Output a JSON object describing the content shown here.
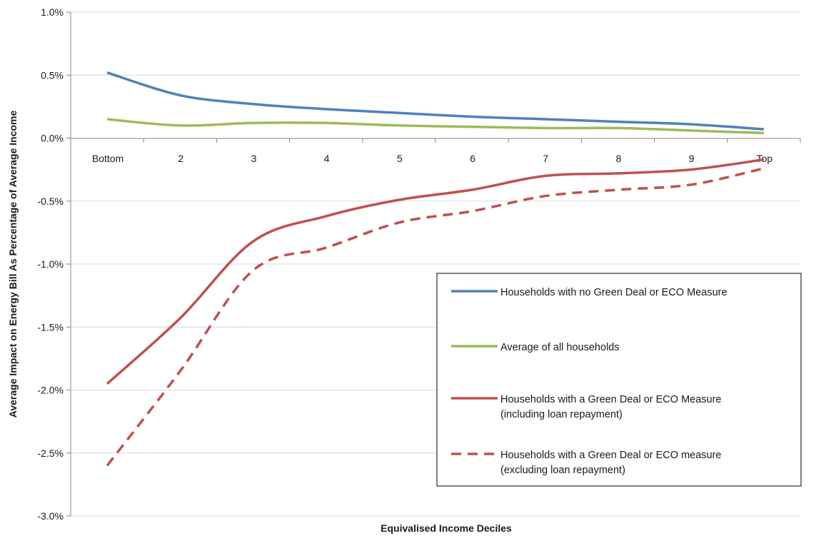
{
  "chart_data": {
    "type": "line",
    "title": "",
    "xlabel": "Equivalised Income Deciles",
    "ylabel": "Average Impact on Energy Bill As Percentage of Average Income",
    "categories": [
      "Bottom",
      "2",
      "3",
      "4",
      "5",
      "6",
      "7",
      "8",
      "9",
      "Top"
    ],
    "y_ticks": [
      1.0,
      0.5,
      0.0,
      -0.5,
      -1.0,
      -1.5,
      -2.0,
      -2.5,
      -3.0
    ],
    "y_tick_labels": [
      "1.0%",
      "0.5%",
      "0.0%",
      "-0.5%",
      "-1.0%",
      "-1.5%",
      "-2.0%",
      "-2.5%",
      "-3.0%"
    ],
    "ylim": [
      -3.0,
      1.0
    ],
    "grid": true,
    "legend_position": "right",
    "series": [
      {
        "name": "Households with no Green Deal or ECO Measure",
        "legend_lines": [
          "Households with no Green Deal or ECO Measure"
        ],
        "color": "#4F81BD",
        "dash": "solid",
        "values": [
          0.52,
          0.34,
          0.27,
          0.23,
          0.2,
          0.17,
          0.15,
          0.13,
          0.11,
          0.07
        ]
      },
      {
        "name": "Average of all households",
        "legend_lines": [
          "Average of all households"
        ],
        "color": "#9BBB59",
        "dash": "solid",
        "values": [
          0.15,
          0.1,
          0.12,
          0.12,
          0.1,
          0.09,
          0.08,
          0.08,
          0.06,
          0.04
        ]
      },
      {
        "name": "Households with a Green Deal or ECO Measure (including loan repayment)",
        "legend_lines": [
          "Households with a Green Deal or ECO Measure",
          "(including loan repayment)"
        ],
        "color": "#C0504D",
        "dash": "solid",
        "values": [
          -1.95,
          -1.43,
          -0.82,
          -0.62,
          -0.49,
          -0.41,
          -0.3,
          -0.28,
          -0.25,
          -0.17
        ]
      },
      {
        "name": "Households with a Green Deal or ECO measure (excluding loan repayment)",
        "legend_lines": [
          "Households with a Green Deal or ECO measure",
          "(excluding loan repayment)"
        ],
        "color": "#C0504D",
        "dash": "dashed",
        "values": [
          -2.6,
          -1.85,
          -1.05,
          -0.87,
          -0.67,
          -0.58,
          -0.46,
          -0.41,
          -0.37,
          -0.24
        ]
      }
    ]
  }
}
